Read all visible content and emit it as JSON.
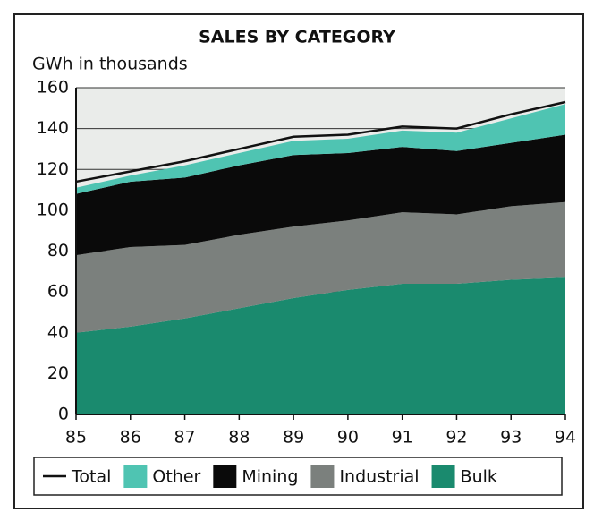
{
  "chart_data": {
    "type": "stacked_area",
    "title": "SALES BY CATEGORY",
    "y_label": "GWh in thousands",
    "categories": [
      "85",
      "86",
      "87",
      "88",
      "89",
      "90",
      "91",
      "92",
      "93",
      "94"
    ],
    "series": [
      {
        "name": "Bulk",
        "color": "#1a8a6e",
        "values": [
          40,
          43,
          47,
          52,
          57,
          61,
          64,
          64,
          66,
          67
        ]
      },
      {
        "name": "Industrial",
        "color": "#7b807d",
        "values": [
          38,
          39,
          36,
          36,
          35,
          34,
          35,
          34,
          36,
          37
        ]
      },
      {
        "name": "Mining",
        "color": "#0a0a0a",
        "values": [
          30,
          32,
          33,
          34,
          35,
          33,
          32,
          31,
          31,
          33
        ]
      },
      {
        "name": "Other",
        "color": "#4fc4b2",
        "values": [
          3,
          3,
          6,
          6,
          7,
          7,
          8,
          9,
          12,
          15
        ]
      },
      {
        "name": "Total",
        "color": "#111111",
        "type": "line",
        "values": [
          114,
          119,
          124,
          130,
          136,
          137,
          141,
          140,
          147,
          153
        ]
      }
    ],
    "ylim": [
      0,
      160
    ],
    "yticks": [
      0,
      20,
      40,
      60,
      80,
      100,
      120,
      140,
      160
    ],
    "grid": true
  }
}
